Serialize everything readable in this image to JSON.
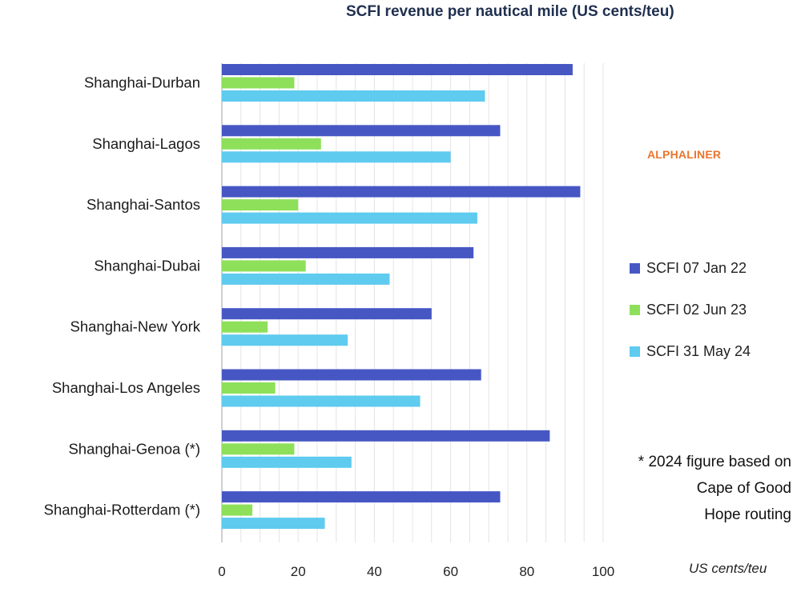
{
  "chart_data": {
    "type": "bar",
    "orientation": "horizontal",
    "title": "SCFI revenue per nautical mile (US cents/teu)",
    "xlabel": "US cents/teu",
    "xlim": [
      0,
      100
    ],
    "xticks": [
      0,
      20,
      40,
      60,
      80,
      100
    ],
    "grid": true,
    "legend_position": "right",
    "categories": [
      "Shanghai-Durban",
      "Shanghai-Lagos",
      "Shanghai-Santos",
      "Shanghai-Dubai",
      "Shanghai-New York",
      "Shanghai-Los Angeles",
      "Shanghai-Genoa (*)",
      "Shanghai-Rotterdam (*)"
    ],
    "series": [
      {
        "name": "SCFI 07 Jan 22",
        "color": "#4657c4",
        "values": [
          92,
          73,
          94,
          66,
          55,
          68,
          86,
          73
        ]
      },
      {
        "name": "SCFI 02 Jun 23",
        "color": "#8ee05a",
        "values": [
          19,
          26,
          20,
          22,
          12,
          14,
          19,
          8
        ]
      },
      {
        "name": "SCFI 31 May 24",
        "color": "#5ecbef",
        "values": [
          69,
          60,
          67,
          44,
          33,
          52,
          34,
          27
        ]
      }
    ]
  },
  "branding": "ALPHALINER",
  "note": "* 2024 figure based on Cape of Good Hope routing",
  "note_lines": [
    "* 2024 figure based on",
    "Cape of Good",
    "Hope routing"
  ]
}
